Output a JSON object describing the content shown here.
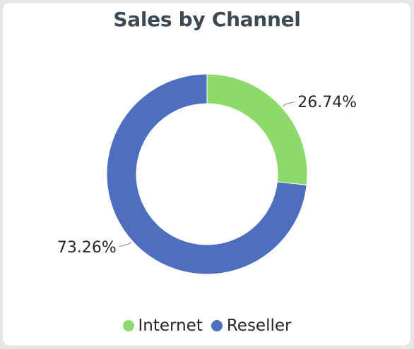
{
  "chart_data": {
    "type": "pie",
    "title": "Sales by Channel",
    "donut": true,
    "categories": [
      "Internet",
      "Reseller"
    ],
    "values": [
      26.74,
      73.26
    ],
    "labels": [
      "26.74%",
      "73.26%"
    ],
    "colors": [
      "#8ed96b",
      "#4e6fc0"
    ],
    "legend_position": "bottom-center"
  }
}
